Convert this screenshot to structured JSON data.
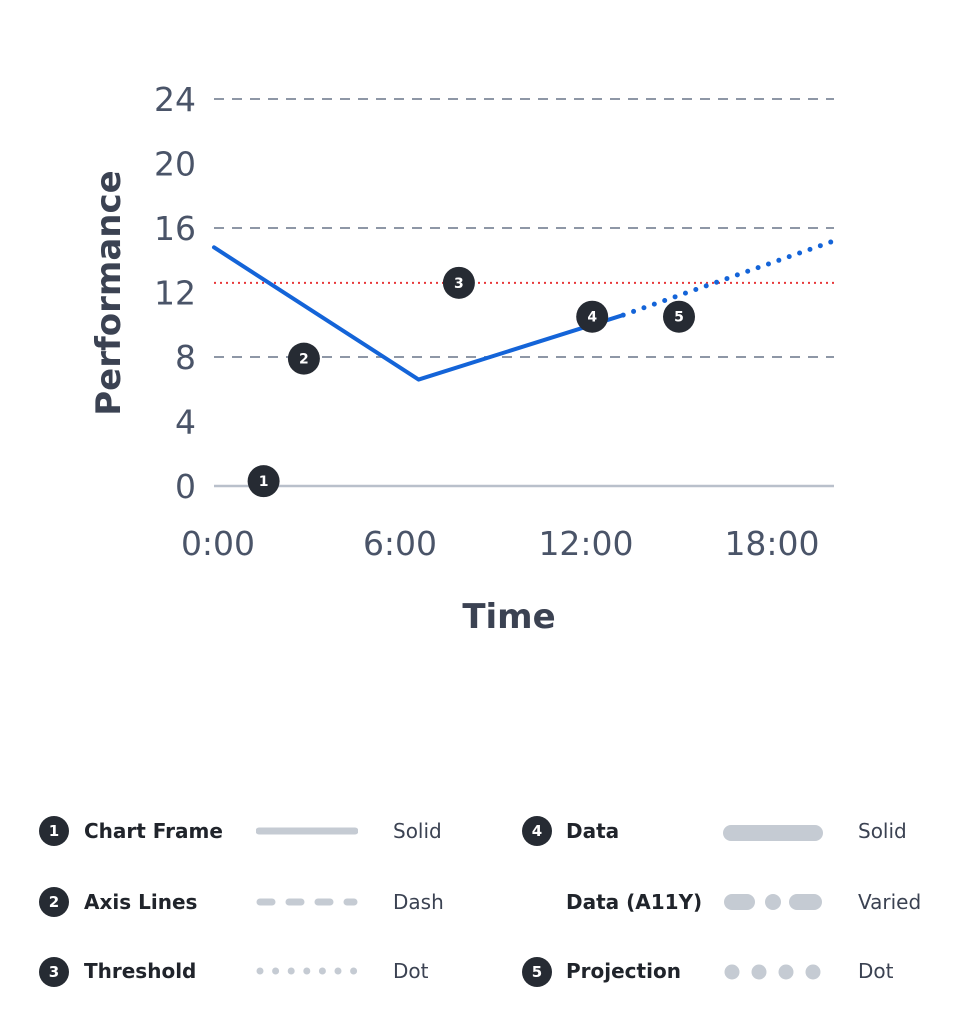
{
  "chart_data": {
    "type": "line",
    "xlabel": "Time",
    "ylabel": "Performance",
    "x_ticks": [
      "0:00",
      "6:00",
      "12:00",
      "18:00"
    ],
    "y_ticks": [
      0,
      4,
      8,
      12,
      16,
      20,
      24
    ],
    "xlim": [
      0,
      20
    ],
    "ylim": [
      0,
      24
    ],
    "gridlines_dashed_at": [
      8,
      16,
      24
    ],
    "threshold": 12.6,
    "series": [
      {
        "style": "solid",
        "x": [
          0,
          6.6,
          13.2
        ],
        "y": [
          14.8,
          6.6,
          10.6
        ]
      },
      {
        "style": "dotted",
        "x": [
          13.2,
          20
        ],
        "y": [
          10.6,
          15.2
        ]
      }
    ],
    "markers": [
      {
        "label": "1",
        "x": 1.6,
        "y": 0.3
      },
      {
        "label": "2",
        "x": 2.9,
        "y": 7.9
      },
      {
        "label": "3",
        "x": 7.9,
        "y": 12.6
      },
      {
        "label": "4",
        "x": 12.2,
        "y": 10.5
      },
      {
        "label": "5",
        "x": 15.0,
        "y": 10.5
      }
    ],
    "colors": {
      "data": "#1464d8",
      "threshold": "#e8383a",
      "gridline": "#8e97a6",
      "frame": "#b9c0cb",
      "marker": "#262b33",
      "swatch": "#c5cbd3"
    }
  },
  "legend": {
    "items": [
      {
        "num": "1",
        "name": "Chart Frame",
        "style": "Solid"
      },
      {
        "num": "2",
        "name": "Axis Lines",
        "style": "Dash"
      },
      {
        "num": "3",
        "name": "Threshold",
        "style": "Dot"
      },
      {
        "num": "4",
        "name": "Data",
        "style": "Solid"
      },
      {
        "num": "",
        "name": "Data (A11Y)",
        "style": "Varied"
      },
      {
        "num": "5",
        "name": "Projection",
        "style": "Dot"
      }
    ]
  }
}
